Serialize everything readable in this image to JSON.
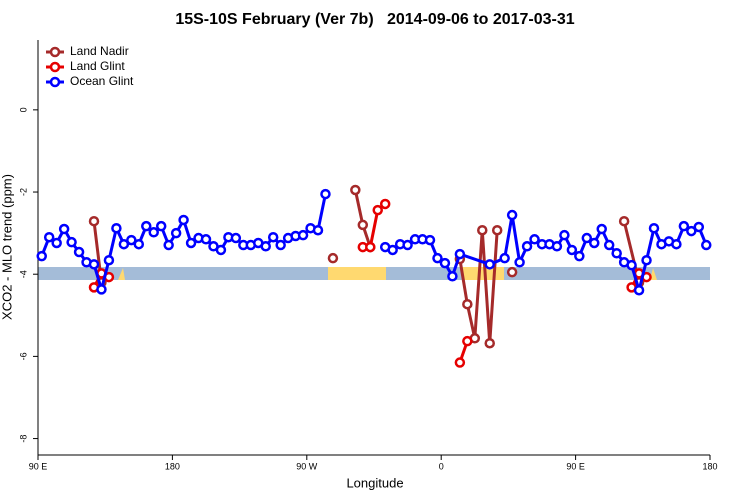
{
  "chart_data": {
    "type": "line",
    "title": "15S-10S February (Ver 7b)   2014-09-06 to 2017-03-31",
    "xlabel": "Longitude",
    "ylabel": "XCO2 - MLO trend (ppm)",
    "xlim": [
      90,
      540
    ],
    "ylim": [
      -8.4,
      1.7
    ],
    "xticks": [
      {
        "value": 90,
        "label": "90 E"
      },
      180,
      {
        "value": 270,
        "label": "90 W"
      },
      {
        "value": 360,
        "label": "0"
      },
      {
        "value": 450,
        "label": "90 E"
      },
      {
        "value": 540,
        "label": "180"
      }
    ],
    "yticks": [
      0,
      -2,
      -4,
      -6,
      -8
    ],
    "legend": "topleft",
    "series": [
      {
        "name": "Land Nadir",
        "color": "#a52a2a",
        "x": [
          127.5,
          132.5,
          137.5,
          287.5,
          297.5,
          302.5,
          307.5,
          312.5,
          317.5,
          372.5,
          377.5,
          382.5,
          387.5,
          392.5,
          397.5,
          402.5,
          407.5,
          412.5,
          482.5,
          492.5
        ],
        "values": [
          -2.71,
          -4.2,
          null,
          -3.61,
          null,
          -1.95,
          -2.8,
          -3.34,
          null,
          -3.63,
          -4.73,
          -5.56,
          -2.93,
          -5.68,
          -2.93,
          null,
          -3.95,
          null,
          -2.71,
          -4.2
        ]
      },
      {
        "name": "Land Glint",
        "color": "#e60000",
        "x": [
          127.5,
          132.5,
          137.5,
          142.5,
          307.5,
          312.5,
          317.5,
          322.5,
          327.5,
          372.5,
          377.5,
          382.5,
          487.5,
          492.5,
          497.5
        ],
        "values": [
          -4.32,
          -3.98,
          -4.07,
          null,
          -3.34,
          -3.34,
          -2.44,
          -2.29,
          null,
          -6.15,
          -5.63,
          null,
          -4.32,
          -3.98,
          -4.07
        ]
      },
      {
        "name": "Ocean Glint",
        "color": "#0000ff",
        "x": [
          92.5,
          97.5,
          102.5,
          107.5,
          112.5,
          117.5,
          122.5,
          127.5,
          132.5,
          137.5,
          142.5,
          147.5,
          152.5,
          157.5,
          162.5,
          167.5,
          172.5,
          177.5,
          182.5,
          187.5,
          192.5,
          197.5,
          202.5,
          207.5,
          212.5,
          217.5,
          222.5,
          227.5,
          232.5,
          237.5,
          242.5,
          247.5,
          252.5,
          257.5,
          262.5,
          267.5,
          272.5,
          277.5,
          282.5,
          302.5,
          322.5,
          327.5,
          332.5,
          337.5,
          342.5,
          347.5,
          352.5,
          357.5,
          362.5,
          367.5,
          372.5,
          392.5,
          402.5,
          407.5,
          412.5,
          417.5,
          422.5,
          427.5,
          432.5,
          437.5,
          442.5,
          447.5,
          452.5,
          457.5,
          462.5,
          467.5,
          472.5,
          477.5,
          482.5,
          487.5,
          492.5,
          497.5,
          502.5,
          507.5,
          512.5,
          517.5,
          522.5,
          527.5,
          532.5,
          537.5
        ],
        "values": [
          -3.56,
          -3.1,
          -3.24,
          -2.9,
          -3.22,
          -3.46,
          -3.71,
          -3.76,
          -4.37,
          -3.66,
          -2.88,
          -3.27,
          -3.17,
          -3.27,
          -2.83,
          -2.98,
          -2.83,
          -3.29,
          -3.0,
          -2.68,
          -3.24,
          -3.12,
          -3.15,
          -3.32,
          -3.41,
          -3.1,
          -3.12,
          -3.29,
          -3.29,
          -3.24,
          -3.32,
          -3.1,
          -3.29,
          -3.12,
          -3.07,
          -3.05,
          -2.88,
          -2.93,
          -2.05,
          null,
          -3.34,
          -3.41,
          -3.27,
          -3.29,
          -3.15,
          -3.15,
          -3.17,
          -3.61,
          -3.73,
          -4.05,
          -3.51,
          -3.76,
          -3.61,
          -2.56,
          -3.71,
          -3.32,
          -3.15,
          -3.27,
          -3.27,
          -3.32,
          -3.05,
          -3.41,
          -3.56,
          -3.12,
          -3.24,
          -2.9,
          -3.29,
          -3.49,
          -3.71,
          -3.78,
          -4.39,
          -3.66,
          -2.88,
          -3.27,
          -3.2,
          -3.27,
          -2.83,
          -2.95,
          -2.85,
          -3.29
        ]
      }
    ]
  }
}
